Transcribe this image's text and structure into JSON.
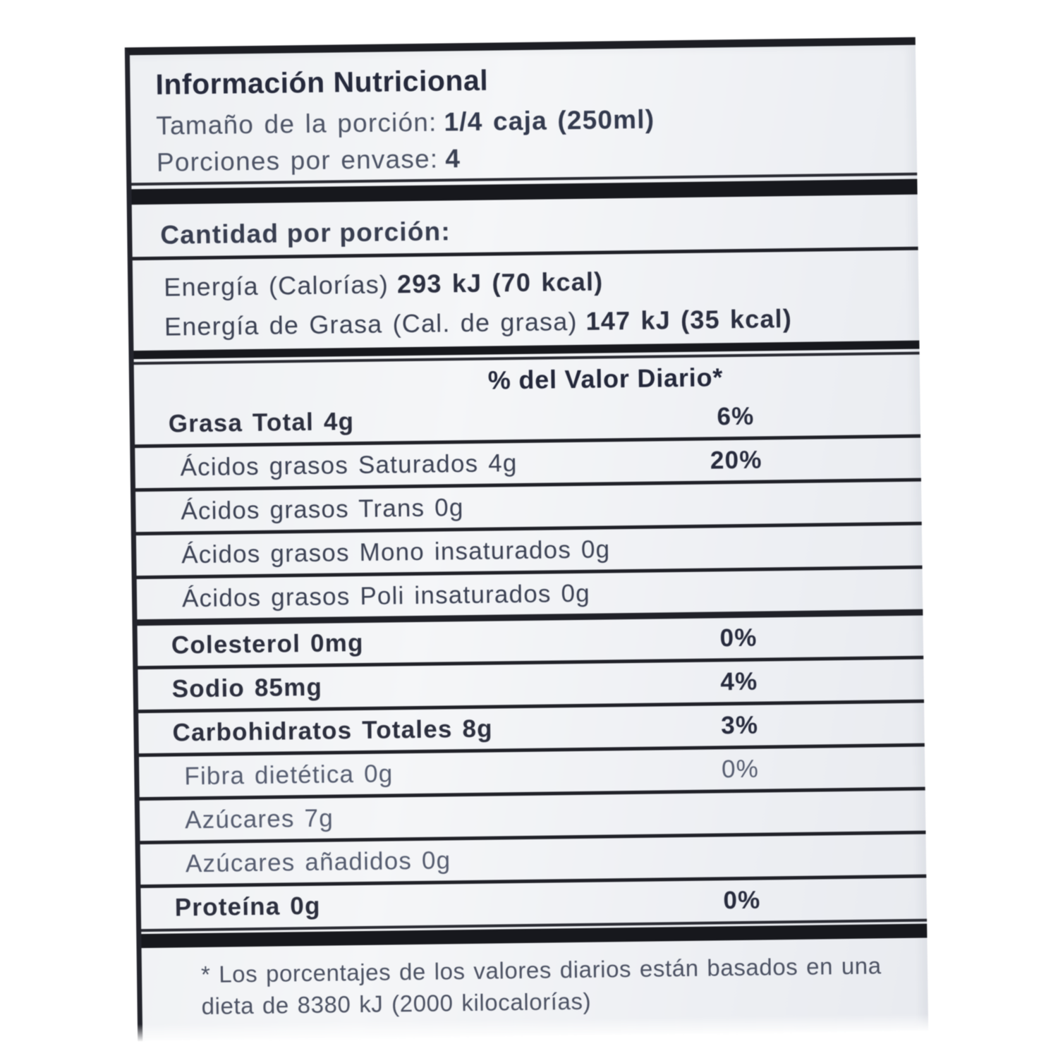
{
  "label": {
    "title": "Información Nutricional",
    "serving_size_label": "Tamaño de la porción:",
    "serving_size_value": "1/4 caja (250ml)",
    "servings_label": "Porciones por envase:",
    "servings_value": "4",
    "amount_per_serving": "Cantidad por porción:",
    "energy_label": "Energía (Calorías)",
    "energy_value": "293 kJ (70 kcal)",
    "fat_energy_label": "Energía de Grasa (Cal. de grasa)",
    "fat_energy_value": "147 kJ (35 kcal)",
    "daily_value_header": "% del Valor Diario*",
    "rows": [
      {
        "label": "Grasa Total 4g",
        "percent": "6%"
      },
      {
        "label": "Ácidos grasos Saturados 4g",
        "percent": "20%"
      },
      {
        "label": "Ácidos grasos Trans 0g",
        "percent": ""
      },
      {
        "label": "Ácidos grasos Mono insaturados 0g",
        "percent": ""
      },
      {
        "label": "Ácidos grasos Poli insaturados 0g",
        "percent": ""
      },
      {
        "label": "Colesterol 0mg",
        "percent": "0%"
      },
      {
        "label": "Sodio 85mg",
        "percent": "4%"
      },
      {
        "label": "Carbohidratos Totales 8g",
        "percent": "3%"
      },
      {
        "label": "Fibra dietética 0g",
        "percent": "0%"
      },
      {
        "label": "Azúcares 7g",
        "percent": ""
      },
      {
        "label": "Azúcares añadidos 0g",
        "percent": ""
      },
      {
        "label": "Proteína 0g",
        "percent": "0%"
      }
    ],
    "footnote_line1": "* Los porcentajes de los valores diarios están basados en una",
    "footnote_line2": "dieta de 8380 kJ (2000 kilocalorías)"
  }
}
